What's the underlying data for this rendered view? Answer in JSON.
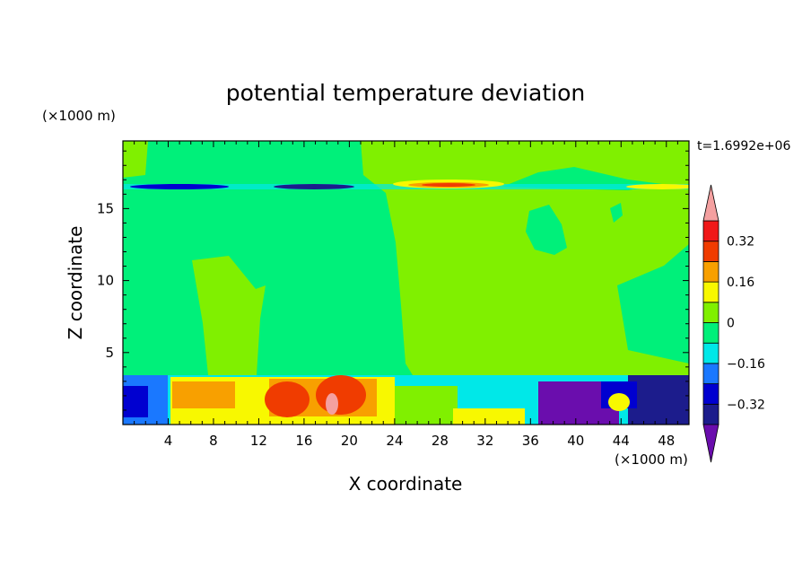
{
  "chart_data": {
    "type": "heatmap",
    "title": "potential temperature deviation",
    "xlabel": "X coordinate",
    "ylabel": "Z coordinate",
    "x_unit": "(×1000 m)",
    "y_unit": "(×1000 m)",
    "time_label": "t=1.6992e+06",
    "xlim": [
      0,
      50
    ],
    "ylim": [
      0,
      19.7
    ],
    "x_ticks": [
      4,
      8,
      12,
      16,
      20,
      24,
      28,
      32,
      36,
      40,
      44,
      48
    ],
    "y_ticks": [
      5,
      10,
      15
    ],
    "colorbar": {
      "levels": [
        -0.4,
        -0.32,
        -0.24,
        -0.16,
        -0.08,
        0,
        0.08,
        0.16,
        0.24,
        0.32,
        0.4
      ],
      "tick_labels": [
        "0.32",
        "0.16",
        "0",
        "−0.16",
        "−0.32"
      ],
      "tick_values": [
        0.32,
        0.16,
        0,
        -0.16,
        -0.32
      ],
      "colors": [
        "#6a0dad",
        "#1c1c8c",
        "#0000d0",
        "#1a78ff",
        "#00e8e8",
        "#00f07a",
        "#80f000",
        "#f8f800",
        "#f8a000",
        "#f03c00",
        "#f01818",
        "#f4a0a0"
      ]
    },
    "background_regions": [
      {
        "x": [
          0,
          21
        ],
        "z": [
          3.5,
          19.7
        ],
        "value": -0.04
      },
      {
        "x": [
          21,
          50
        ],
        "z": [
          3.5,
          19.7
        ],
        "value": 0.04
      }
    ]
  }
}
